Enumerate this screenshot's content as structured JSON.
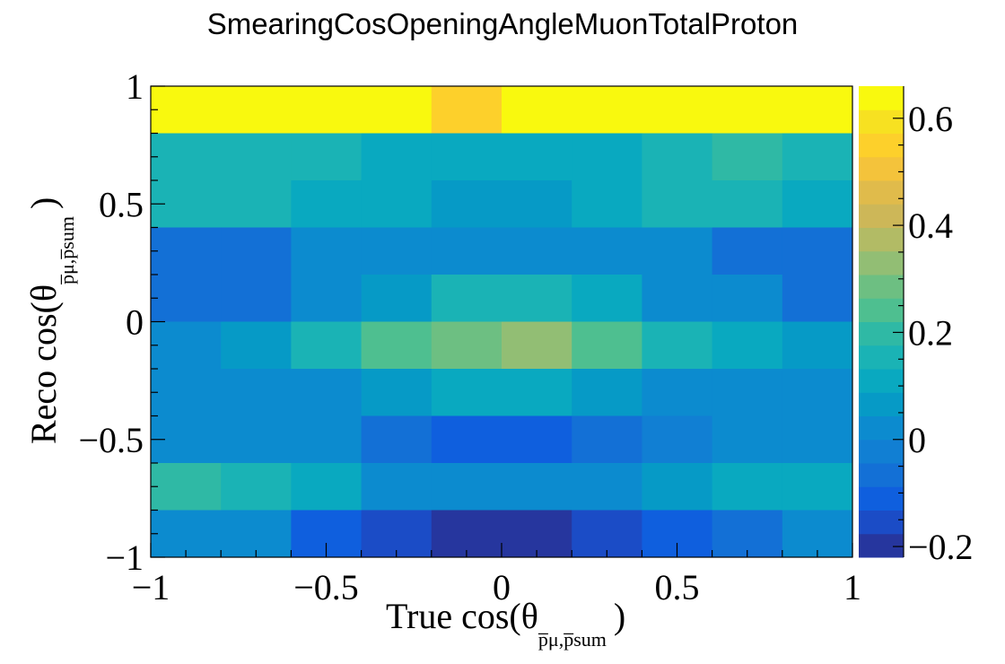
{
  "chart_data": {
    "type": "heatmap",
    "title": "SmearingCosOpeningAngleMuonTotalProton",
    "xlabel": {
      "main": "True cos(θ",
      "sub": "p̅μ,p̅sum",
      "close": ")"
    },
    "ylabel": {
      "main": "Reco cos(θ",
      "sub": "p̅μ,p̅sum",
      "close": ")"
    },
    "x_edges": [
      -1.0,
      -0.8,
      -0.6,
      -0.4,
      -0.2,
      0.0,
      0.2,
      0.4,
      0.6,
      0.8,
      1.0
    ],
    "y_edges": [
      -1.0,
      -0.8,
      -0.6,
      -0.4,
      -0.2,
      0.0,
      0.2,
      0.4,
      0.6,
      0.8,
      1.0
    ],
    "xlim": [
      -1,
      1
    ],
    "ylim": [
      -1,
      1
    ],
    "zlim": [
      -0.22,
      0.66
    ],
    "x_ticks": [
      {
        "v": -1,
        "label": "−1"
      },
      {
        "v": -0.5,
        "label": "−0.5"
      },
      {
        "v": 0,
        "label": "0"
      },
      {
        "v": 0.5,
        "label": "0.5"
      },
      {
        "v": 1,
        "label": "1"
      }
    ],
    "y_ticks": [
      {
        "v": -1,
        "label": "−1"
      },
      {
        "v": -0.5,
        "label": "−0.5"
      },
      {
        "v": 0,
        "label": "0"
      },
      {
        "v": 0.5,
        "label": "0.5"
      },
      {
        "v": 1,
        "label": "1"
      }
    ],
    "z_ticks": [
      {
        "v": -0.2,
        "label": "−0.2"
      },
      {
        "v": 0,
        "label": "0"
      },
      {
        "v": 0.2,
        "label": "0.2"
      },
      {
        "v": 0.4,
        "label": "0.4"
      },
      {
        "v": 0.6,
        "label": "0.6"
      }
    ],
    "values_rows_top_to_bottom": [
      [
        0.65,
        0.65,
        0.65,
        0.62,
        0.57,
        0.62,
        0.65,
        0.65,
        0.65,
        0.62
      ],
      [
        0.16,
        0.16,
        0.16,
        0.11,
        0.11,
        0.11,
        0.11,
        0.16,
        0.21,
        0.16
      ],
      [
        0.16,
        0.16,
        0.11,
        0.11,
        0.07,
        0.07,
        0.11,
        0.16,
        0.16,
        0.11
      ],
      [
        -0.06,
        -0.06,
        0.02,
        0.02,
        0.04,
        0.04,
        0.04,
        0.02,
        -0.06,
        -0.06
      ],
      [
        -0.06,
        -0.06,
        0.04,
        0.07,
        0.16,
        0.16,
        0.11,
        0.04,
        0.02,
        -0.06
      ],
      [
        0.04,
        0.07,
        0.16,
        0.25,
        0.3,
        0.35,
        0.25,
        0.16,
        0.11,
        0.07
      ],
      [
        0.02,
        0.02,
        0.04,
        0.07,
        0.11,
        0.11,
        0.07,
        0.04,
        0.02,
        0.02
      ],
      [
        0.0,
        0.0,
        0.0,
        -0.07,
        -0.11,
        -0.11,
        -0.07,
        -0.04,
        0.0,
        0.0
      ],
      [
        0.21,
        0.16,
        0.11,
        0.04,
        0.02,
        0.02,
        0.04,
        0.07,
        0.11,
        0.11
      ],
      [
        0.04,
        0.02,
        -0.11,
        -0.16,
        -0.21,
        -0.21,
        -0.16,
        -0.11,
        -0.06,
        0.02
      ]
    ],
    "palette": [
      "#26369e",
      "#1b4cc6",
      "#0f5fde",
      "#1370d6",
      "#117fd3",
      "#0c8bcf",
      "#069ac6",
      "#09a9c0",
      "#1ab3b5",
      "#2fb9a5",
      "#4ebf90",
      "#6dbf82",
      "#92be74",
      "#b2bb65",
      "#cdb758",
      "#e0bb4b",
      "#f4c33b",
      "#fdd02b",
      "#f7e121",
      "#f9f90e"
    ],
    "grid": false,
    "legend": "colorbar-right"
  }
}
